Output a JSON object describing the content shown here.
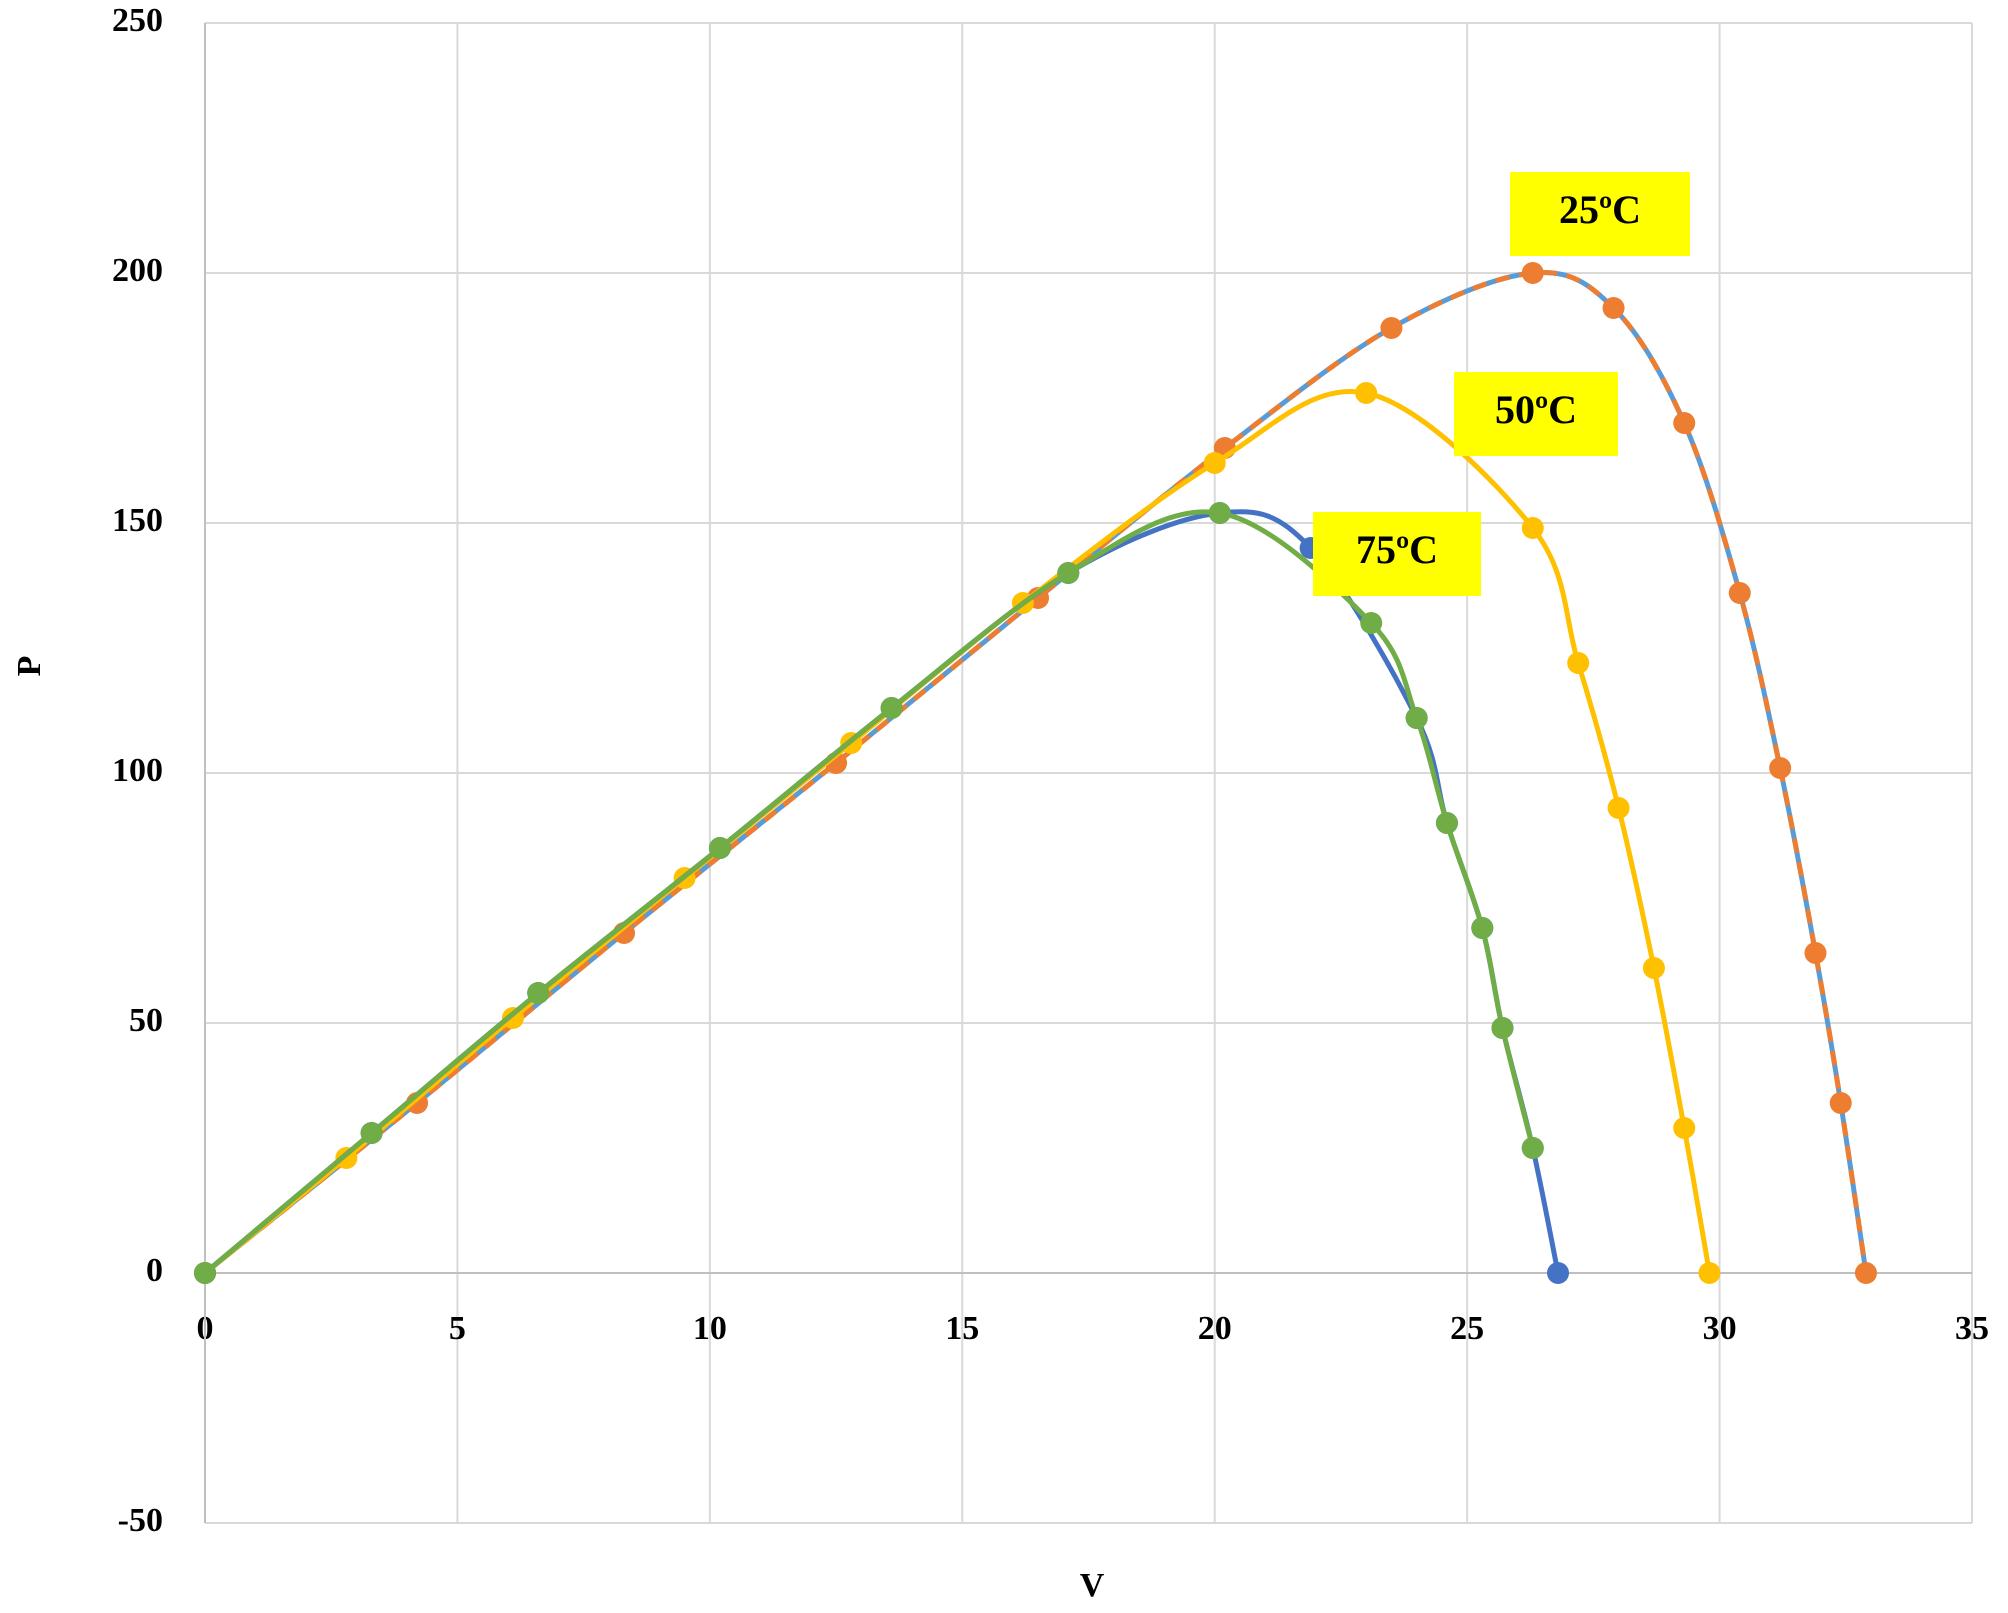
{
  "chart_data": {
    "type": "line",
    "x_label": "V",
    "y_label": "P",
    "xlim": [
      0,
      35
    ],
    "xticks": [
      0,
      5,
      10,
      15,
      20,
      25,
      30,
      35
    ],
    "ylim": [
      -50,
      250
    ],
    "yticks": [
      -50,
      0,
      50,
      100,
      150,
      200,
      250
    ],
    "grid": true,
    "annotations": [
      "25ºC",
      "50ºC",
      "75ºC"
    ],
    "annotation_color": "#ffff00",
    "series": [
      {
        "color": "#5b9bd5",
        "dashed": false,
        "markers": false,
        "x": [
          0,
          4.2,
          8.3,
          12.5,
          16.5,
          20.2,
          23.5,
          26.3,
          27.9,
          29.3,
          30.4,
          31.2,
          31.9,
          32.4,
          32.9
        ],
        "values": [
          0,
          34,
          68,
          102,
          135,
          165,
          189,
          200,
          193,
          170,
          136,
          101,
          64,
          34,
          0
        ]
      },
      {
        "color": "#ed7d31",
        "dashed": true,
        "markers": true,
        "x": [
          0,
          4.2,
          8.3,
          12.5,
          16.5,
          20.2,
          23.5,
          26.3,
          27.9,
          29.3,
          30.4,
          31.2,
          31.9,
          32.4,
          32.9
        ],
        "values": [
          0,
          34,
          68,
          102,
          135,
          165,
          189,
          200,
          193,
          170,
          136,
          101,
          64,
          34,
          0
        ]
      },
      {
        "color": "#ffc000",
        "dashed": false,
        "markers": true,
        "x": [
          0,
          2.8,
          6.1,
          9.5,
          12.8,
          16.2,
          20,
          23,
          26.3,
          27.2,
          28,
          28.7,
          29.3,
          29.8
        ],
        "values": [
          0,
          23,
          51,
          79,
          106,
          134,
          162,
          176,
          149,
          122,
          93,
          61,
          29,
          0
        ]
      },
      {
        "color": "#4472c4",
        "dashed": false,
        "markers": true,
        "x": [
          0,
          3.3,
          6.6,
          10.2,
          13.6,
          17.1,
          20.1,
          21.9,
          24,
          24.6,
          25.3,
          25.7,
          26.3,
          26.8
        ],
        "values": [
          0,
          28,
          56,
          85,
          113,
          140,
          152,
          145,
          111,
          90,
          69,
          49,
          25,
          0
        ]
      },
      {
        "color": "#70ad47",
        "dashed": false,
        "markers": true,
        "x": [
          0,
          3.3,
          6.6,
          10.2,
          13.6,
          17.1,
          20.1,
          23.1,
          24,
          24.6,
          25.3,
          25.7,
          26.3
        ],
        "values": [
          0,
          28,
          56,
          85,
          113,
          140,
          152,
          130,
          111,
          90,
          69,
          49,
          25
        ]
      }
    ]
  }
}
